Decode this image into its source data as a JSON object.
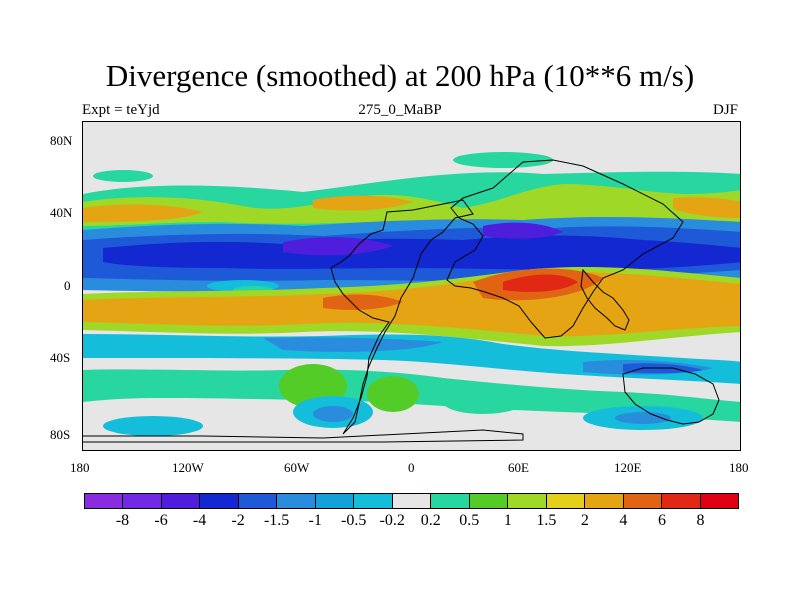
{
  "title": "Divergence (smoothed) at 200 hPa (10**6 m/s)",
  "left_label": "Expt = teYjd",
  "center_label": "275_0_MaBP",
  "right_label": "DJF",
  "y_ticks": [
    "80N",
    "40N",
    "0",
    "40S",
    "80S"
  ],
  "x_ticks": [
    "180",
    "120W",
    "60W",
    "0",
    "60E",
    "120E",
    "180"
  ],
  "colorbar": {
    "colors": [
      "#8a2be2",
      "#7328e6",
      "#4e1edc",
      "#1428d2",
      "#1e5ad8",
      "#2a8cdc",
      "#14a0d8",
      "#14beda",
      "#e6e6e6",
      "#28d6a0",
      "#54cc28",
      "#a0d828",
      "#e4d018",
      "#e4a414",
      "#e06414",
      "#e02814",
      "#e00014"
    ],
    "labels": [
      "-8",
      "-6",
      "-4",
      "-2",
      "-1.5",
      "-1",
      "-0.5",
      "-0.2",
      "0.2",
      "0.5",
      "1",
      "1.5",
      "2",
      "4",
      "6",
      "8"
    ]
  }
}
